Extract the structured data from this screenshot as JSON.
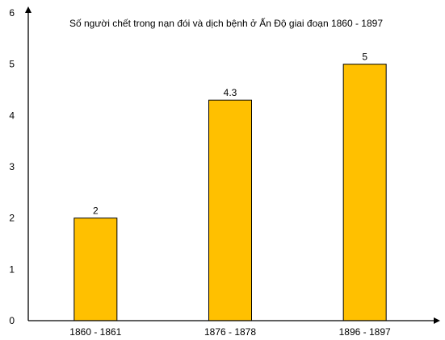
{
  "chart_data": {
    "type": "bar",
    "title": "Số người chết trong nạn đói và dịch bệnh ở Ấn Độ giai đoạn 1860 - 1897",
    "categories": [
      "1860 - 1861",
      "1876 - 1878",
      "1896 - 1897"
    ],
    "values": [
      2,
      4.3,
      5
    ],
    "data_labels": [
      "2",
      "4.3",
      "5"
    ],
    "y_ticks": [
      "0",
      "1",
      "2",
      "3",
      "4",
      "5",
      "6"
    ],
    "xlabel": "",
    "ylabel": "",
    "ylim": [
      0,
      6
    ],
    "grid": false,
    "bar_color": "#FFC000",
    "bar_stroke": "#000000"
  }
}
